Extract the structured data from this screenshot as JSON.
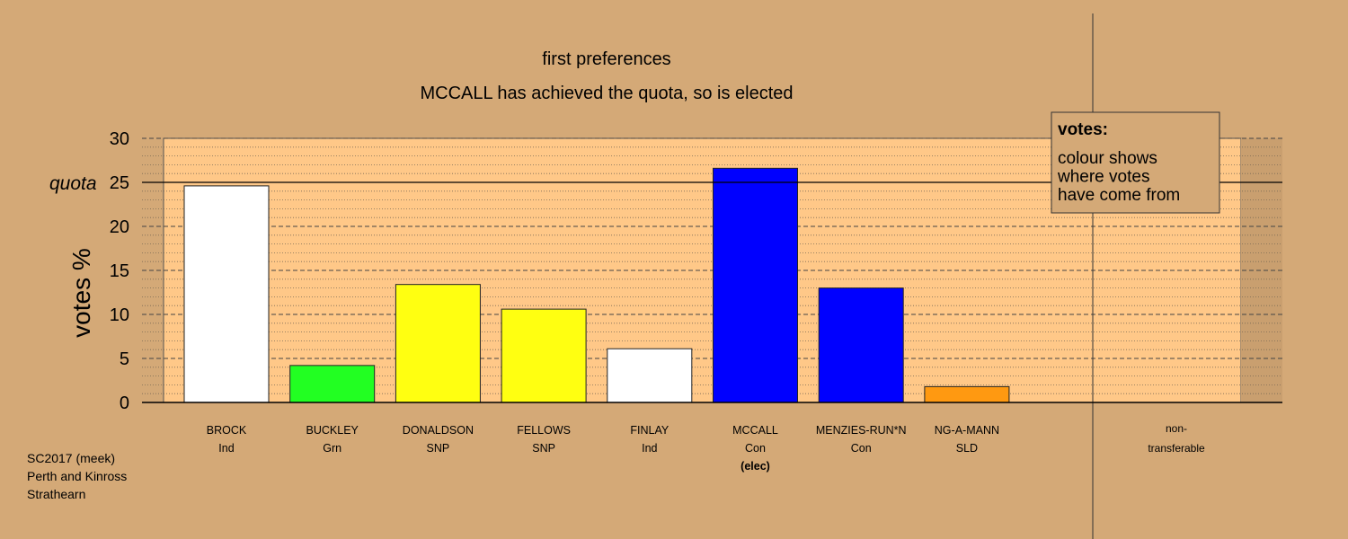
{
  "chart_data": {
    "type": "bar",
    "title": "first preferences",
    "subtitle": "MCCALL has achieved the quota, so is elected",
    "ylabel": "votes %",
    "ylim": [
      0,
      30
    ],
    "yticks": [
      0,
      5,
      10,
      15,
      20,
      25,
      30
    ],
    "quota": 25,
    "quota_label": "quota",
    "grid": true,
    "categories": [
      "BROCK",
      "BUCKLEY",
      "DONALDSON",
      "FELLOWS",
      "FINLAY",
      "MCCALL",
      "MENZIES-RUN*N",
      "NG-A-MANN",
      "non-transferable"
    ],
    "candidates": [
      {
        "name": "BROCK",
        "party": "Ind",
        "value": 24.6,
        "color": "#ffffff",
        "note": ""
      },
      {
        "name": "BUCKLEY",
        "party": "Grn",
        "value": 4.2,
        "color": "#22ff22",
        "note": ""
      },
      {
        "name": "DONALDSON",
        "party": "SNP",
        "value": 13.4,
        "color": "#ffff11",
        "note": ""
      },
      {
        "name": "FELLOWS",
        "party": "SNP",
        "value": 10.6,
        "color": "#ffff11",
        "note": ""
      },
      {
        "name": "FINLAY",
        "party": "Ind",
        "value": 6.1,
        "color": "#ffffff",
        "note": ""
      },
      {
        "name": "MCCALL",
        "party": "Con",
        "value": 26.6,
        "color": "#0000ff",
        "note": "(elec)"
      },
      {
        "name": "MENZIES-RUN*N",
        "party": "Con",
        "value": 13.0,
        "color": "#0000ff",
        "note": ""
      },
      {
        "name": "NG-A-MANN",
        "party": "SLD",
        "value": 1.8,
        "color": "#ff9911",
        "note": ""
      }
    ],
    "nontransferable": {
      "line1": "non-",
      "line2": "transferable",
      "value": 0
    },
    "legend": {
      "title": "votes:",
      "lines": [
        "colour shows",
        "where votes",
        "have come from"
      ],
      "position": "top-right"
    }
  },
  "footer": {
    "line1": "SC2017 (meek)",
    "line2": "Perth and Kinross",
    "line3": "Strathearn"
  }
}
